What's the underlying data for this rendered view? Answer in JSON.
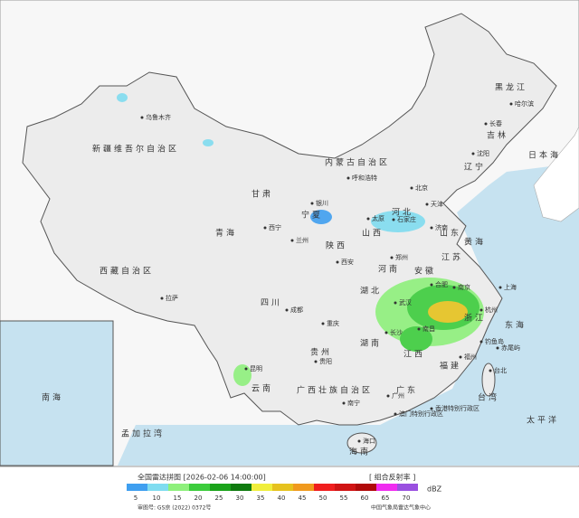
{
  "map_labels": [
    "新疆维吾尔自治区",
    "乌鲁木齐",
    "西藏自治区",
    "拉萨",
    "青海",
    "西宁",
    "甘肃",
    "兰州",
    "宁夏",
    "银川",
    "内蒙古自治区",
    "呼和浩特",
    "黑龙江",
    "哈尔滨",
    "吉林",
    "长春",
    "辽宁",
    "沈阳",
    "北京",
    "天津",
    "河北",
    "石家庄",
    "山西",
    "太原",
    "山东",
    "济南",
    "河南",
    "郑州",
    "陕西",
    "西安",
    "四川",
    "成都",
    "重庆",
    "贵州",
    "贵阳",
    "云南",
    "昆明",
    "湖北",
    "武汉",
    "湖南",
    "长沙",
    "江西",
    "南昌",
    "安徽",
    "合肥",
    "江苏",
    "南京",
    "上海",
    "浙江",
    "杭州",
    "福建",
    "福州",
    "台湾",
    "台北",
    "广东",
    "广州",
    "广西壮族自治区",
    "南宁",
    "海南",
    "海口",
    "香港特别行政区",
    "澳门特别行政区",
    "日本海",
    "黄海",
    "东海",
    "太平洋",
    "南海",
    "孟加拉湾",
    "钓鱼岛",
    "赤尾屿"
  ],
  "legend": {
    "title": "全国雷达拼图 [2026-02-06 14:00:00]",
    "product": "[ 组合反射率 ]",
    "unit": "dBZ",
    "levels": [
      {
        "value": 5,
        "color": "#3f9ff0"
      },
      {
        "value": 10,
        "color": "#7fdcf0"
      },
      {
        "value": 15,
        "color": "#8ef07c"
      },
      {
        "value": 20,
        "color": "#3ccc3c"
      },
      {
        "value": 25,
        "color": "#1aa31a"
      },
      {
        "value": 30,
        "color": "#0f7a0f"
      },
      {
        "value": 35,
        "color": "#f0ee3c"
      },
      {
        "value": 40,
        "color": "#e6c21e"
      },
      {
        "value": 45,
        "color": "#f09a1e"
      },
      {
        "value": 50,
        "color": "#f01e1e"
      },
      {
        "value": 55,
        "color": "#d01414"
      },
      {
        "value": 60,
        "color": "#b00a0a"
      },
      {
        "value": 65,
        "color": "#f02cf0"
      },
      {
        "value": 70,
        "color": "#9a50e0"
      }
    ]
  },
  "credits": {
    "approval": "审图号: GS京 (2022) 0372号",
    "source": "中国气象局雷达气象中心"
  }
}
